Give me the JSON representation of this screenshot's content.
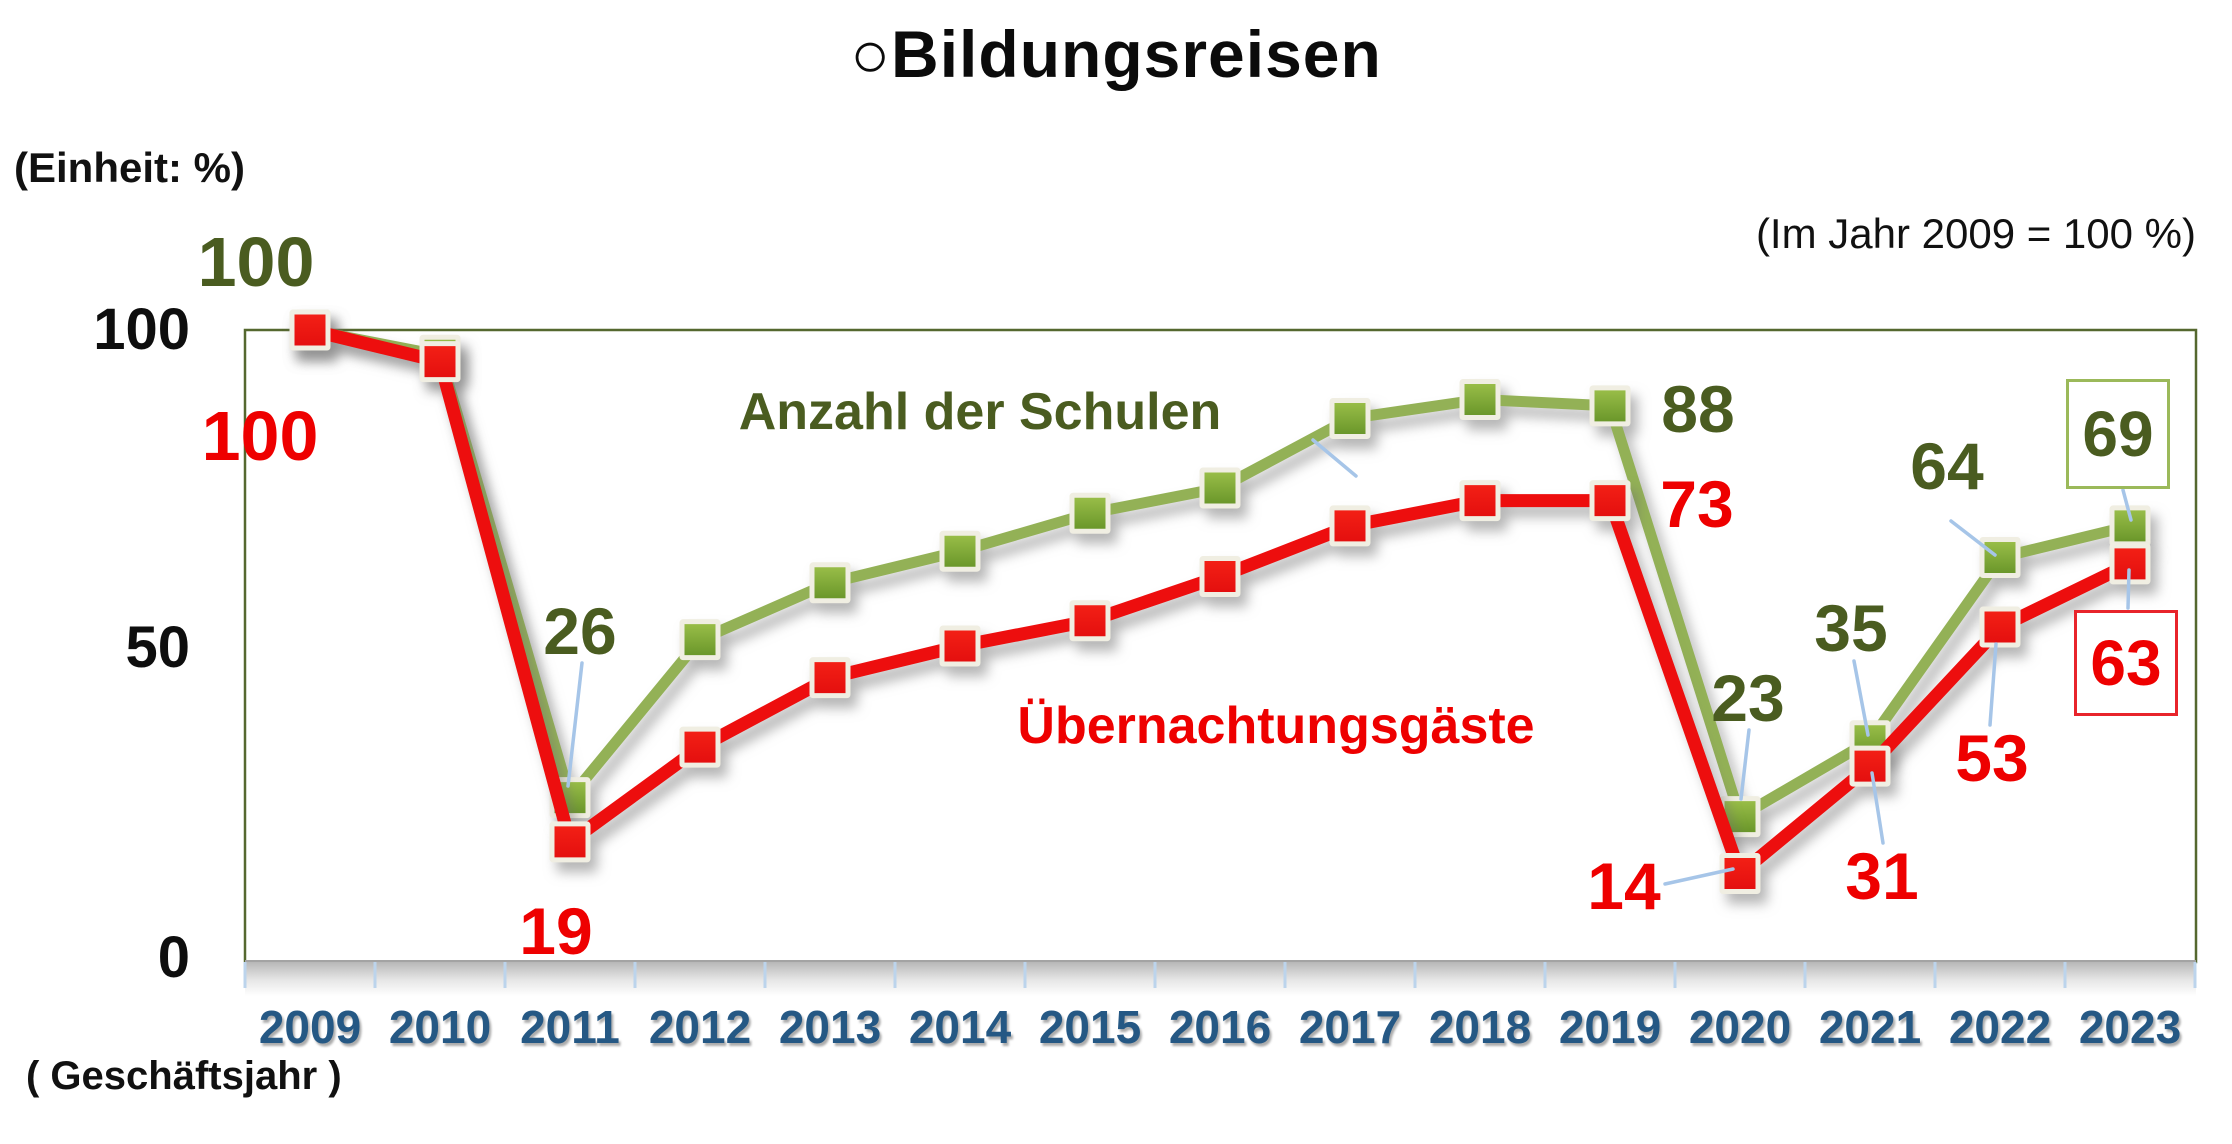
{
  "page": {
    "unit_note": "(Einheit: %)",
    "index_note": "(Im Jahr 2009 = 100 %)",
    "x_axis_note": "( Geschäftsjahr )"
  },
  "chart_data": {
    "type": "line",
    "title": "○Bildungsreisen",
    "categories": [
      "2009",
      "2010",
      "2011",
      "2012",
      "2013",
      "2014",
      "2015",
      "2016",
      "2017",
      "2018",
      "2019",
      "2020",
      "2021",
      "2022",
      "2023"
    ],
    "xlabel": "( Geschäftsjahr )",
    "ylabel": "(Einheit: %)",
    "ylim": [
      0,
      100
    ],
    "y_ticks": [
      "100",
      "50",
      "0"
    ],
    "grid": false,
    "legend_position": "inline-labels",
    "series": [
      {
        "id": "schulen",
        "name": "Anzahl der Schulen",
        "values": [
          100,
          96,
          26,
          51,
          60,
          65,
          71,
          75,
          86,
          89,
          88,
          23,
          35,
          64,
          69
        ]
      },
      {
        "id": "gaeste",
        "name": "Übernachtungsgäste",
        "values": [
          100,
          95,
          19,
          34,
          45,
          50,
          54,
          61,
          69,
          73,
          73,
          14,
          31,
          53,
          63
        ]
      }
    ],
    "point_labels": [
      {
        "series": "schulen",
        "year": "2009",
        "text": "100",
        "boxed": false
      },
      {
        "series": "gaeste",
        "year": "2009",
        "text": "100",
        "boxed": false
      },
      {
        "series": "schulen",
        "year": "2011",
        "text": "26",
        "boxed": false
      },
      {
        "series": "gaeste",
        "year": "2011",
        "text": "19",
        "boxed": false
      },
      {
        "series": "schulen",
        "year": "2019",
        "text": "88",
        "boxed": false
      },
      {
        "series": "gaeste",
        "year": "2019",
        "text": "73",
        "boxed": false
      },
      {
        "series": "schulen",
        "year": "2020",
        "text": "23",
        "boxed": false
      },
      {
        "series": "gaeste",
        "year": "2020",
        "text": "14",
        "boxed": false
      },
      {
        "series": "schulen",
        "year": "2021",
        "text": "35",
        "boxed": false
      },
      {
        "series": "gaeste",
        "year": "2021",
        "text": "31",
        "boxed": false
      },
      {
        "series": "schulen",
        "year": "2022",
        "text": "64",
        "boxed": false
      },
      {
        "series": "gaeste",
        "year": "2022",
        "text": "53",
        "boxed": false
      },
      {
        "series": "schulen",
        "year": "2023",
        "text": "69",
        "boxed": true
      },
      {
        "series": "gaeste",
        "year": "2023",
        "text": "63",
        "boxed": true
      }
    ],
    "colors": {
      "green_line": "#93B156",
      "green_marker_light": "#9CC04A",
      "green_marker_dark": "#679428",
      "green_text": "#4A5C20",
      "green_box_border": "#9BB95A",
      "red_line": "#ED0E0E",
      "red_marker_light": "#F42116",
      "red_marker_dark": "#E30E0E",
      "red_text": "#EE0000",
      "red_box_border": "#E8242B",
      "marker_border": "#F0EEE2",
      "plot_border": "#55682F",
      "year_label": "#255884",
      "leader_line": "#A6C5E8",
      "axis_tick": "#BCD4EC"
    }
  }
}
